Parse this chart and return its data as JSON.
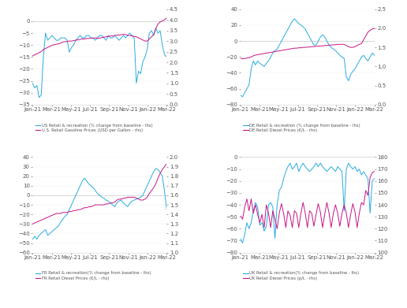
{
  "x_labels": [
    "Jan-21",
    "Mar-21",
    "May-21",
    "Jul-21",
    "Sep-21",
    "Nov-21",
    "Jan-22",
    "Mar-22"
  ],
  "n_points": 63,
  "subplots": [
    {
      "country": "US",
      "legend1": "US Retail & recreation (% change from baseline - lhs)",
      "legend2": "U.S. Retail Gasoline Prices (USD per Gallon - rhs)",
      "lhs_ylim": [
        -35,
        5
      ],
      "rhs_ylim": [
        0,
        4.5
      ],
      "lhs_yticks": [
        -35,
        -30,
        -25,
        -20,
        -15,
        -10,
        -5,
        0
      ],
      "rhs_yticks": [
        0,
        0.5,
        1.0,
        1.5,
        2.0,
        2.5,
        3.0,
        3.5,
        4.0,
        4.5
      ],
      "mobility": [
        -26,
        -28,
        -27,
        -32,
        -31,
        -15,
        -5,
        -8,
        -7,
        -6,
        -7,
        -8,
        -8,
        -7,
        -7,
        -7,
        -8,
        -13,
        -11,
        -10,
        -8,
        -7,
        -6,
        -7,
        -7,
        -6,
        -6,
        -7,
        -7,
        -8,
        -7,
        -6,
        -6,
        -7,
        -8,
        -6,
        -7,
        -7,
        -6,
        -7,
        -8,
        -7,
        -6,
        -7,
        -6,
        -5,
        -6,
        -7,
        -26,
        -21,
        -22,
        -17,
        -15,
        -12,
        -5,
        -4,
        -6,
        -3,
        -5,
        -4,
        -10,
        -14,
        -15
      ],
      "price": [
        2.3,
        2.35,
        2.4,
        2.45,
        2.5,
        2.6,
        2.65,
        2.7,
        2.75,
        2.8,
        2.82,
        2.85,
        2.87,
        2.9,
        2.95,
        2.97,
        2.98,
        3.0,
        3.0,
        3.02,
        3.04,
        3.06,
        3.08,
        3.1,
        3.1,
        3.12,
        3.12,
        3.13,
        3.14,
        3.15,
        3.14,
        3.14,
        3.16,
        3.18,
        3.2,
        3.22,
        3.24,
        3.24,
        3.26,
        3.28,
        3.28,
        3.3,
        3.32,
        3.3,
        3.28,
        3.26,
        3.24,
        3.22,
        3.2,
        3.15,
        3.1,
        3.05,
        3.0,
        3.0,
        3.1,
        3.2,
        3.3,
        3.6,
        3.8,
        3.9,
        3.95,
        4.0,
        4.1
      ]
    },
    {
      "country": "DE",
      "legend1": "DE Retail & recreation (% change from baseline - lhs)",
      "legend2": "DE Retail Diesel Prices (€/L - rhs)",
      "lhs_ylim": [
        -80,
        40
      ],
      "rhs_ylim": [
        0,
        2.5
      ],
      "lhs_yticks": [
        -80,
        -60,
        -40,
        -20,
        0,
        20,
        40
      ],
      "rhs_yticks": [
        0,
        0.5,
        1.0,
        1.5,
        2.0,
        2.5
      ],
      "mobility": [
        -68,
        -70,
        -65,
        -60,
        -55,
        -35,
        -25,
        -30,
        -25,
        -28,
        -30,
        -32,
        -28,
        -25,
        -20,
        -15,
        -12,
        -10,
        -5,
        0,
        5,
        10,
        15,
        20,
        25,
        28,
        25,
        22,
        20,
        18,
        15,
        10,
        5,
        0,
        -5,
        -5,
        0,
        5,
        8,
        5,
        0,
        -5,
        -8,
        -10,
        -12,
        -15,
        -18,
        -20,
        -22,
        -45,
        -50,
        -42,
        -38,
        -35,
        -30,
        -25,
        -20,
        -18,
        -22,
        -25,
        -20,
        -15,
        -18
      ],
      "price": [
        1.22,
        1.2,
        1.21,
        1.22,
        1.23,
        1.25,
        1.28,
        1.3,
        1.31,
        1.32,
        1.33,
        1.34,
        1.35,
        1.36,
        1.37,
        1.38,
        1.39,
        1.4,
        1.41,
        1.42,
        1.43,
        1.44,
        1.45,
        1.46,
        1.47,
        1.48,
        1.48,
        1.49,
        1.49,
        1.5,
        1.5,
        1.51,
        1.51,
        1.52,
        1.52,
        1.53,
        1.53,
        1.54,
        1.54,
        1.55,
        1.55,
        1.56,
        1.56,
        1.57,
        1.57,
        1.58,
        1.58,
        1.58,
        1.58,
        1.55,
        1.52,
        1.5,
        1.5,
        1.52,
        1.55,
        1.58,
        1.6,
        1.7,
        1.8,
        1.9,
        1.95,
        1.98,
        2.0
      ]
    },
    {
      "country": "FR",
      "legend1": "FR Retail & recreation(% change from baseline - lhs)",
      "legend2": "FR Retail Diesel Prices (€/L - rhs)",
      "lhs_ylim": [
        -60,
        40
      ],
      "rhs_ylim": [
        1.0,
        2.0
      ],
      "lhs_yticks": [
        -60,
        -50,
        -40,
        -30,
        -20,
        -10,
        0,
        10,
        20,
        30,
        40
      ],
      "rhs_yticks": [
        1.0,
        1.1,
        1.2,
        1.3,
        1.4,
        1.5,
        1.6,
        1.7,
        1.8,
        1.9,
        2.0
      ],
      "mobility": [
        -46,
        -43,
        -46,
        -42,
        -40,
        -38,
        -36,
        -42,
        -40,
        -38,
        -36,
        -34,
        -32,
        -28,
        -25,
        -22,
        -20,
        -15,
        -10,
        -5,
        0,
        5,
        10,
        15,
        18,
        15,
        12,
        10,
        8,
        5,
        2,
        0,
        -2,
        -3,
        -5,
        -6,
        -8,
        -10,
        -12,
        -8,
        -6,
        -5,
        -8,
        -10,
        -12,
        -8,
        -6,
        -5,
        -4,
        -3,
        -2,
        0,
        5,
        10,
        15,
        20,
        25,
        28,
        27,
        24,
        20,
        5,
        -15
      ],
      "price": [
        1.3,
        1.31,
        1.32,
        1.33,
        1.34,
        1.35,
        1.36,
        1.37,
        1.38,
        1.39,
        1.4,
        1.41,
        1.41,
        1.41,
        1.42,
        1.42,
        1.42,
        1.43,
        1.43,
        1.44,
        1.44,
        1.45,
        1.45,
        1.46,
        1.47,
        1.47,
        1.48,
        1.48,
        1.49,
        1.5,
        1.5,
        1.5,
        1.5,
        1.5,
        1.51,
        1.51,
        1.52,
        1.52,
        1.53,
        1.55,
        1.56,
        1.56,
        1.57,
        1.57,
        1.58,
        1.58,
        1.58,
        1.58,
        1.57,
        1.56,
        1.55,
        1.55,
        1.56,
        1.58,
        1.62,
        1.65,
        1.68,
        1.72,
        1.78,
        1.83,
        1.87,
        1.9,
        1.93
      ]
    },
    {
      "country": "UK",
      "legend1": "UK Retail & recreation(% change from baseline - lhs)",
      "legend2": "UK Retail Diesel Prices (p/L - rhs)",
      "lhs_ylim": [
        -80,
        0
      ],
      "rhs_ylim": [
        100,
        180
      ],
      "lhs_yticks": [
        -80,
        -70,
        -60,
        -50,
        -40,
        -30,
        -20,
        -10,
        0
      ],
      "rhs_yticks": [
        100,
        110,
        120,
        130,
        140,
        150,
        160,
        170,
        180
      ],
      "mobility": [
        -68,
        -72,
        -65,
        -55,
        -60,
        -55,
        -45,
        -38,
        -42,
        -57,
        -55,
        -62,
        -58,
        -40,
        -38,
        -42,
        -68,
        -40,
        -28,
        -25,
        -18,
        -12,
        -8,
        -5,
        -10,
        -8,
        -5,
        -12,
        -8,
        -5,
        -8,
        -10,
        -12,
        -10,
        -8,
        -5,
        -8,
        -5,
        -8,
        -10,
        -12,
        -10,
        -8,
        -10,
        -12,
        -8,
        -10,
        -12,
        -45,
        -10,
        -5,
        -8,
        -10,
        -8,
        -12,
        -10,
        -15,
        -12,
        -15,
        -18,
        -47,
        -20,
        -18
      ],
      "price": [
        131,
        128,
        138,
        145,
        135,
        145,
        133,
        140,
        132,
        125,
        132,
        121,
        140,
        133,
        121,
        135,
        128,
        120,
        133,
        141,
        133,
        121,
        135,
        131,
        121,
        135,
        133,
        121,
        133,
        142,
        133,
        121,
        135,
        133,
        122,
        132,
        141,
        134,
        121,
        132,
        142,
        133,
        121,
        133,
        140,
        133,
        122,
        133,
        140,
        133,
        121,
        132,
        141,
        134,
        121,
        133,
        142,
        140,
        152,
        148,
        163,
        167,
        168
      ]
    }
  ],
  "line_color_mobility": "#29ABE2",
  "line_color_price": "#C71585",
  "zero_line_color": "#cccccc",
  "bg_color": "#ffffff",
  "font_color": "#555555",
  "tick_label_size": 5.0
}
